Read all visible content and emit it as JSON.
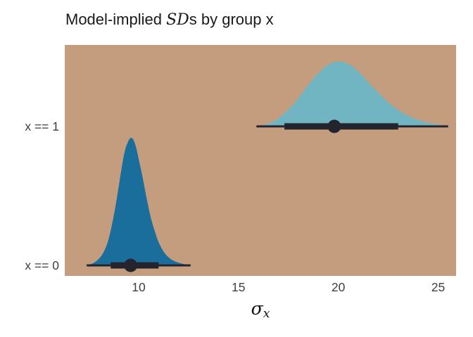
{
  "title": {
    "prefix": "Model-implied ",
    "italic": "SD",
    "suffix": "s by group x"
  },
  "x_axis": {
    "label_symbol": "σ",
    "label_subscript": "x"
  },
  "chart_data": {
    "type": "area",
    "subtype": "halfeye-density-with-point-interval",
    "title": "Model-implied SDs by group x",
    "xlabel": "sigma_x",
    "xlim": [
      6.3,
      25.9
    ],
    "x_ticks": [
      10,
      15,
      20,
      25
    ],
    "x_tick_labels": [
      "10",
      "15",
      "20",
      "25"
    ],
    "categories": [
      "x == 0",
      "x == 1"
    ],
    "grid": false,
    "legend": "none",
    "colors": {
      "panel_background": "#c49d7e",
      "interval": "#23242e"
    },
    "series": [
      {
        "name": "x == 0",
        "fill": "#1a6e9c",
        "point_estimate": 9.6,
        "interval_thick": [
          8.6,
          11.0
        ],
        "interval_thin": [
          7.4,
          12.6
        ],
        "density": [
          [
            7.3,
            0
          ],
          [
            7.6,
            0.005
          ],
          [
            7.9,
            0.02
          ],
          [
            8.2,
            0.05
          ],
          [
            8.45,
            0.1
          ],
          [
            8.65,
            0.17
          ],
          [
            8.85,
            0.26
          ],
          [
            9.0,
            0.34
          ],
          [
            9.15,
            0.42
          ],
          [
            9.3,
            0.49
          ],
          [
            9.45,
            0.53
          ],
          [
            9.6,
            0.55
          ],
          [
            9.75,
            0.54
          ],
          [
            9.9,
            0.5
          ],
          [
            10.05,
            0.44
          ],
          [
            10.2,
            0.38
          ],
          [
            10.4,
            0.29
          ],
          [
            10.6,
            0.21
          ],
          [
            10.8,
            0.15
          ],
          [
            11.0,
            0.1
          ],
          [
            11.25,
            0.06
          ],
          [
            11.5,
            0.035
          ],
          [
            11.8,
            0.018
          ],
          [
            12.2,
            0.007
          ],
          [
            12.7,
            0
          ]
        ]
      },
      {
        "name": "x == 1",
        "fill": "#72b5c2",
        "point_estimate": 19.8,
        "interval_thick": [
          17.3,
          23.0
        ],
        "interval_thin": [
          15.9,
          25.5
        ],
        "density": [
          [
            15.8,
            0
          ],
          [
            16.2,
            0.005
          ],
          [
            16.6,
            0.015
          ],
          [
            17.0,
            0.035
          ],
          [
            17.4,
            0.065
          ],
          [
            17.8,
            0.1
          ],
          [
            18.2,
            0.145
          ],
          [
            18.6,
            0.19
          ],
          [
            19.0,
            0.23
          ],
          [
            19.4,
            0.26
          ],
          [
            19.7,
            0.275
          ],
          [
            20.0,
            0.28
          ],
          [
            20.3,
            0.277
          ],
          [
            20.6,
            0.265
          ],
          [
            20.9,
            0.245
          ],
          [
            21.2,
            0.22
          ],
          [
            21.5,
            0.19
          ],
          [
            21.9,
            0.155
          ],
          [
            22.3,
            0.12
          ],
          [
            22.7,
            0.09
          ],
          [
            23.1,
            0.065
          ],
          [
            23.5,
            0.045
          ],
          [
            24.0,
            0.028
          ],
          [
            24.5,
            0.015
          ],
          [
            25.0,
            0.008
          ],
          [
            25.6,
            0
          ]
        ]
      }
    ]
  }
}
